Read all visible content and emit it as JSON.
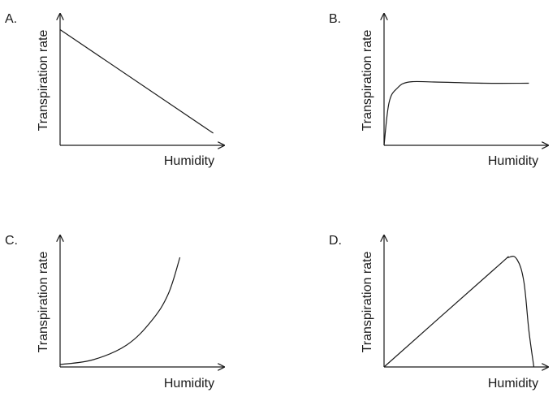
{
  "chart_data": [
    {
      "type": "line",
      "panel_label": "A.",
      "xlabel": "Humidity",
      "ylabel": "Transpiration rate",
      "shape": "linear-decrease",
      "xlim": [
        0,
        1
      ],
      "ylim": [
        0,
        1
      ],
      "series": [
        {
          "x": [
            0,
            0.92
          ],
          "y": [
            0.95,
            0.1
          ]
        }
      ]
    },
    {
      "type": "line",
      "panel_label": "B.",
      "xlabel": "Humidity",
      "ylabel": "Transpiration rate",
      "shape": "rapid-rise-then-plateau",
      "xlim": [
        0,
        1
      ],
      "ylim": [
        0,
        1
      ],
      "series": [
        {
          "x": [
            0,
            0.03,
            0.08,
            0.15,
            0.3,
            0.6,
            0.87
          ],
          "y": [
            0,
            0.35,
            0.47,
            0.52,
            0.52,
            0.51,
            0.51
          ]
        }
      ]
    },
    {
      "type": "line",
      "panel_label": "C.",
      "xlabel": "Humidity",
      "ylabel": "Transpiration rate",
      "shape": "exponential-increase",
      "xlim": [
        0,
        1
      ],
      "ylim": [
        0,
        1
      ],
      "series": [
        {
          "x": [
            0,
            0.2,
            0.4,
            0.55,
            0.65,
            0.72
          ],
          "y": [
            0.02,
            0.06,
            0.18,
            0.38,
            0.6,
            0.9
          ]
        }
      ]
    },
    {
      "type": "line",
      "panel_label": "D.",
      "xlabel": "Humidity",
      "ylabel": "Transpiration rate",
      "shape": "linear-rise-then-sharp-drop",
      "xlim": [
        0,
        1
      ],
      "ylim": [
        0,
        1
      ],
      "series": [
        {
          "x": [
            0,
            0.66,
            0.75,
            0.8,
            0.84,
            0.87,
            0.9
          ],
          "y": [
            0,
            0.8,
            0.9,
            0.88,
            0.7,
            0.3,
            0
          ]
        }
      ]
    }
  ]
}
